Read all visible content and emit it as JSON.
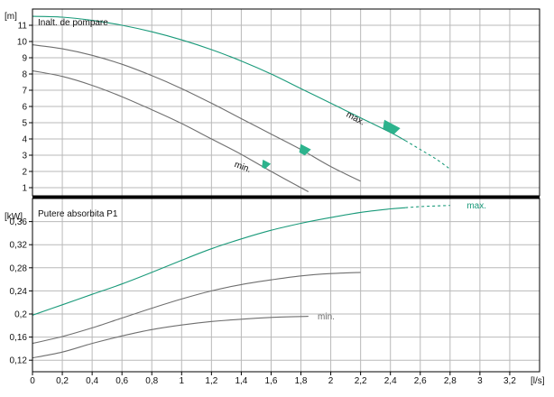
{
  "colors": {
    "max_curve": "#1a9a7a",
    "speed_curves": "#6f6f6f",
    "grid": "#b9b9b9",
    "frame": "#000000",
    "marker": "#2db38d"
  },
  "chart_data": [
    {
      "type": "line",
      "title": "Inalt. de pompare",
      "ylabel": "[m]",
      "xlim": [
        0,
        3.4
      ],
      "ylim": [
        0.5,
        12
      ],
      "yticks": [
        1,
        2,
        3,
        4,
        5,
        6,
        7,
        8,
        9,
        10,
        11
      ],
      "grid": true,
      "series": [
        {
          "name": "max.",
          "x": [
            0,
            0.2,
            0.4,
            0.6,
            0.8,
            1.0,
            1.2,
            1.4,
            1.6,
            1.8,
            2.0,
            2.2,
            2.4,
            2.5
          ],
          "y": [
            11.55,
            11.5,
            11.3,
            11.0,
            10.6,
            10.1,
            9.5,
            8.8,
            8.0,
            7.1,
            6.2,
            5.3,
            4.4,
            3.9
          ],
          "extrapolated": {
            "x": [
              2.5,
              2.6,
              2.7,
              2.8
            ],
            "y": [
              3.9,
              3.35,
              2.8,
              2.15
            ]
          }
        },
        {
          "name": "",
          "x": [
            0,
            0.2,
            0.4,
            0.6,
            0.8,
            1.0,
            1.2,
            1.4,
            1.6,
            1.8,
            2.0,
            2.2
          ],
          "y": [
            9.8,
            9.55,
            9.15,
            8.6,
            7.9,
            7.1,
            6.2,
            5.25,
            4.3,
            3.35,
            2.3,
            1.4
          ]
        },
        {
          "name": "min.",
          "x": [
            0,
            0.2,
            0.4,
            0.6,
            0.8,
            1.0,
            1.2,
            1.4,
            1.6,
            1.85
          ],
          "y": [
            8.2,
            7.85,
            7.3,
            6.6,
            5.8,
            4.95,
            4.0,
            3.05,
            2.0,
            0.75
          ]
        }
      ],
      "annotations": [
        {
          "text": "max.",
          "x": 2.1,
          "y": 5.4
        },
        {
          "text": "min.",
          "x": 1.35,
          "y": 2.3
        }
      ],
      "markers": [
        {
          "x": 2.4,
          "y": 4.7
        },
        {
          "x": 1.82,
          "y": 3.3
        },
        {
          "x": 1.56,
          "y": 2.4
        }
      ]
    },
    {
      "type": "line",
      "title": "Putere absorbita P1",
      "ylabel": "[kW]",
      "xlabel": "[l/s]",
      "xlim": [
        0,
        3.4
      ],
      "ylim": [
        0.1,
        0.4
      ],
      "xticks": [
        0,
        0.2,
        0.4,
        0.6,
        0.8,
        1,
        1.2,
        1.4,
        1.6,
        1.8,
        2,
        2.2,
        2.4,
        2.6,
        2.8,
        3,
        3.2
      ],
      "xtick_labels": [
        "0",
        "0,2",
        "0,4",
        "0,6",
        "0,8",
        "1",
        "1,2",
        "1,4",
        "1,6",
        "1,8",
        "2",
        "2,2",
        "2,4",
        "2,6",
        "2,8",
        "3",
        "3,2"
      ],
      "yticks": [
        0.12,
        0.16,
        0.2,
        0.24,
        0.28,
        0.32,
        0.36
      ],
      "ytick_labels": [
        "0,12",
        "0,16",
        "0,2",
        "0,24",
        "0,28",
        "0,32",
        "0,36"
      ],
      "grid": true,
      "series": [
        {
          "name": "max.",
          "x": [
            0,
            0.2,
            0.4,
            0.6,
            0.8,
            1.0,
            1.2,
            1.4,
            1.6,
            1.8,
            2.0,
            2.2,
            2.4,
            2.5
          ],
          "y": [
            0.198,
            0.216,
            0.234,
            0.252,
            0.272,
            0.293,
            0.313,
            0.33,
            0.345,
            0.357,
            0.367,
            0.376,
            0.382,
            0.384
          ],
          "extrapolated": {
            "x": [
              2.5,
              2.6,
              2.7,
              2.8
            ],
            "y": [
              0.384,
              0.386,
              0.387,
              0.388
            ]
          }
        },
        {
          "name": "",
          "x": [
            0,
            0.2,
            0.4,
            0.6,
            0.8,
            1.0,
            1.2,
            1.4,
            1.6,
            1.8,
            2.0,
            2.2
          ],
          "y": [
            0.149,
            0.161,
            0.176,
            0.193,
            0.21,
            0.226,
            0.24,
            0.251,
            0.259,
            0.266,
            0.27,
            0.272
          ]
        },
        {
          "name": "min.",
          "x": [
            0,
            0.2,
            0.4,
            0.6,
            0.8,
            1.0,
            1.2,
            1.4,
            1.6,
            1.85
          ],
          "y": [
            0.124,
            0.134,
            0.149,
            0.162,
            0.173,
            0.181,
            0.187,
            0.191,
            0.194,
            0.196
          ]
        }
      ],
      "annotations": [
        {
          "text": "max.",
          "x": 2.9,
          "y": 0.388
        },
        {
          "text": "min.",
          "x": 1.9,
          "y": 0.196
        }
      ]
    }
  ]
}
